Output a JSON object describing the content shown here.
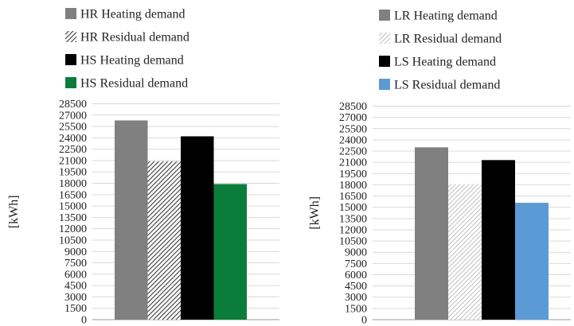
{
  "chart_data": [
    {
      "type": "bar",
      "ylabel": "[kWh]",
      "ylim": [
        0,
        28500
      ],
      "yticks": [
        "0",
        "1500",
        "3000",
        "4500",
        "6000",
        "7500",
        "9000",
        "10500",
        "12000",
        "13500",
        "15000",
        "16500",
        "18000",
        "19500",
        "21000",
        "22500",
        "24000",
        "25500",
        "27000",
        "28500"
      ],
      "grid": true,
      "legend_position": "top",
      "series": [
        {
          "name": "HR Heating demand",
          "value": 26300,
          "color": "#808080",
          "pattern": "solid"
        },
        {
          "name": "HR Residual demand",
          "value": 20900,
          "color": "#555555",
          "pattern": "hatch-dark"
        },
        {
          "name": "HS Heating demand",
          "value": 24200,
          "color": "#000000",
          "pattern": "solid"
        },
        {
          "name": "HS Residual demand",
          "value": 17900,
          "color": "#0a7d3b",
          "pattern": "solid"
        }
      ]
    },
    {
      "type": "bar",
      "ylabel": "[kWh]",
      "ylim": [
        0,
        28500
      ],
      "yticks": [
        "0",
        "1500",
        "3000",
        "4500",
        "6000",
        "7500",
        "9000",
        "10500",
        "12000",
        "13500",
        "15000",
        "16500",
        "18000",
        "19500",
        "21000",
        "22500",
        "24000",
        "25500",
        "27000",
        "28500"
      ],
      "grid": true,
      "legend_position": "top",
      "series": [
        {
          "name": "LR Heating demand",
          "value": 23000,
          "color": "#808080",
          "pattern": "solid"
        },
        {
          "name": "LR Residual demand",
          "value": 18100,
          "color": "#b8b8b8",
          "pattern": "hatch-light"
        },
        {
          "name": "LS Heating demand",
          "value": 21300,
          "color": "#000000",
          "pattern": "solid"
        },
        {
          "name": "LS Residual demand",
          "value": 15600,
          "color": "#5b9bd5",
          "pattern": "solid"
        }
      ]
    }
  ]
}
